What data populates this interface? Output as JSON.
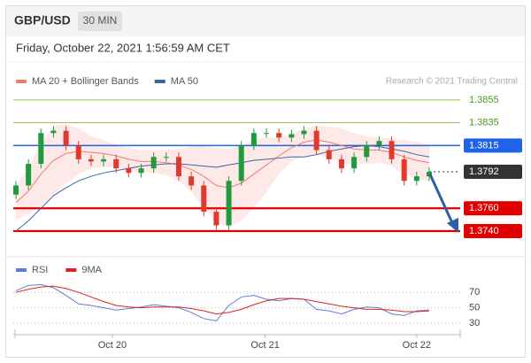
{
  "header": {
    "symbol": "GBP/USD",
    "timeframe": "30 MIN"
  },
  "timestamp": "Friday, October 22, 2021 1:56:59 AM CET",
  "chart_data": [
    {
      "type": "candlestick",
      "credit": "Research © 2021 Trading Central",
      "ylim": [
        1.3733,
        1.3865
      ],
      "up_color": "#1f9a3c",
      "down_color": "#e03a2f",
      "open": [
        1.3772,
        1.378,
        1.3799,
        1.3826,
        1.3828,
        1.3815,
        1.3803,
        1.3801,
        1.3803,
        1.3795,
        1.3791,
        1.3795,
        1.3805,
        1.3805,
        1.3788,
        1.378,
        1.3757,
        1.3745,
        1.3784,
        1.3815,
        1.3826,
        1.3826,
        1.3822,
        1.3825,
        1.3828,
        1.3811,
        1.3803,
        1.3795,
        1.3805,
        1.3815,
        1.3819,
        1.3803,
        1.3784,
        1.3788
      ],
      "high": [
        1.3784,
        1.3803,
        1.383,
        1.3832,
        1.3832,
        1.3819,
        1.3807,
        1.3807,
        1.3807,
        1.3799,
        1.3799,
        1.3809,
        1.3809,
        1.3809,
        1.3792,
        1.3784,
        1.3761,
        1.3788,
        1.3819,
        1.383,
        1.383,
        1.383,
        1.3829,
        1.3832,
        1.3832,
        1.3815,
        1.3807,
        1.3809,
        1.3819,
        1.3823,
        1.3823,
        1.3807,
        1.3792,
        1.3796
      ],
      "low": [
        1.3768,
        1.3776,
        1.3795,
        1.3822,
        1.3811,
        1.3799,
        1.3797,
        1.3797,
        1.3791,
        1.3787,
        1.3787,
        1.3791,
        1.3801,
        1.3784,
        1.3776,
        1.3753,
        1.374,
        1.3741,
        1.378,
        1.3811,
        1.3822,
        1.3818,
        1.3818,
        1.3821,
        1.3807,
        1.3799,
        1.3791,
        1.3791,
        1.3801,
        1.3811,
        1.3799,
        1.378,
        1.378,
        1.3784
      ],
      "close": [
        1.378,
        1.3799,
        1.3826,
        1.3828,
        1.3815,
        1.3803,
        1.3801,
        1.3803,
        1.3795,
        1.3791,
        1.3795,
        1.3805,
        1.3805,
        1.3788,
        1.378,
        1.3757,
        1.3745,
        1.3784,
        1.3815,
        1.3826,
        1.3826,
        1.3822,
        1.3825,
        1.3828,
        1.3811,
        1.3803,
        1.3795,
        1.3805,
        1.3815,
        1.3819,
        1.3803,
        1.3784,
        1.3788,
        1.3792
      ],
      "overlays": [
        {
          "name": "MA 20 + Bollinger Bands",
          "color": "#f07c74",
          "band_color": "#fde3e1",
          "values": [
            1.3765,
            1.3775,
            1.379,
            1.3802,
            1.3808,
            1.381,
            1.3809,
            1.3808,
            1.3806,
            1.3803,
            1.3801,
            1.3801,
            1.38,
            1.3798,
            1.3794,
            1.3788,
            1.378,
            1.3778,
            1.3782,
            1.379,
            1.3798,
            1.3806,
            1.3813,
            1.3818,
            1.382,
            1.3818,
            1.3815,
            1.3812,
            1.3811,
            1.3811,
            1.3809,
            1.3805,
            1.3802,
            1.38
          ],
          "upper": [
            1.378,
            1.3795,
            1.3818,
            1.3832,
            1.3834,
            1.383,
            1.3823,
            1.382,
            1.3816,
            1.3813,
            1.3811,
            1.3811,
            1.3811,
            1.3812,
            1.3814,
            1.3815,
            1.3813,
            1.3812,
            1.3815,
            1.382,
            1.3822,
            1.3822,
            1.3825,
            1.383,
            1.3833,
            1.3832,
            1.383,
            1.3826,
            1.3823,
            1.3822,
            1.3821,
            1.382,
            1.3818,
            1.3816
          ],
          "lower": [
            1.375,
            1.3755,
            1.3762,
            1.3772,
            1.3782,
            1.379,
            1.3795,
            1.3796,
            1.3796,
            1.3793,
            1.3791,
            1.3791,
            1.3789,
            1.3784,
            1.3774,
            1.3761,
            1.3747,
            1.3744,
            1.3749,
            1.376,
            1.3774,
            1.379,
            1.3801,
            1.3806,
            1.3807,
            1.3804,
            1.38,
            1.3798,
            1.3799,
            1.38,
            1.3797,
            1.379,
            1.3786,
            1.3784
          ]
        },
        {
          "name": "MA 50",
          "color": "#3b64a8",
          "values": [
            1.374,
            1.3749,
            1.376,
            1.3771,
            1.3778,
            1.3784,
            1.3788,
            1.3791,
            1.3793,
            1.3795,
            1.3797,
            1.3798,
            1.3799,
            1.3799,
            1.3798,
            1.3797,
            1.3796,
            1.3798,
            1.38,
            1.3802,
            1.3803,
            1.3804,
            1.3805,
            1.3805,
            1.3807,
            1.381,
            1.3812,
            1.3814,
            1.3815,
            1.3814,
            1.3812,
            1.381,
            1.3807,
            1.3805
          ]
        }
      ],
      "levels": [
        {
          "value": 1.3855,
          "color": "#8cc152",
          "text_color": "#4c9a1a",
          "style": "resistance"
        },
        {
          "value": 1.3835,
          "color": "#8cc152",
          "text_color": "#4c9a1a",
          "style": "resistance"
        },
        {
          "value": 1.3815,
          "color": "#1f63e6",
          "text_color": "#ffffff",
          "style": "pivot"
        },
        {
          "value": 1.3792,
          "color": "#333333",
          "text_color": "#ffffff",
          "style": "current"
        },
        {
          "value": 1.376,
          "label": "1.3760",
          "color": "#e00000",
          "text_color": "#ffffff",
          "style": "support"
        },
        {
          "value": 1.374,
          "label": "1.3740",
          "color": "#e00000",
          "text_color": "#ffffff",
          "style": "support"
        }
      ]
    },
    {
      "type": "line",
      "xlim": [
        0,
        33
      ],
      "ylim": [
        22,
        84
      ],
      "yticks": [
        70,
        50,
        30
      ],
      "grid": true,
      "xticks": [
        {
          "value": 7.7,
          "label": "Oct 20"
        },
        {
          "value": 19.9,
          "label": "Oct 21"
        },
        {
          "value": 32,
          "label": "Oct 22"
        }
      ],
      "series": [
        {
          "name": "RSI",
          "color": "#5b7fd6",
          "values": [
            72,
            79,
            80,
            76,
            66,
            55,
            53,
            50,
            47,
            49,
            51,
            54,
            52,
            50,
            44,
            36,
            33,
            53,
            64,
            66,
            61,
            59,
            62,
            61,
            48,
            46,
            42,
            48,
            51,
            50,
            42,
            40,
            46,
            47
          ]
        },
        {
          "name": "9MA",
          "color": "#e02020",
          "values": [
            70,
            74,
            77,
            78,
            75,
            70,
            64,
            58,
            53,
            51,
            50,
            51,
            51,
            51,
            49,
            46,
            42,
            44,
            48,
            54,
            59,
            62,
            62,
            61,
            58,
            55,
            52,
            50,
            48,
            48,
            47,
            45,
            45,
            46
          ]
        }
      ]
    }
  ]
}
